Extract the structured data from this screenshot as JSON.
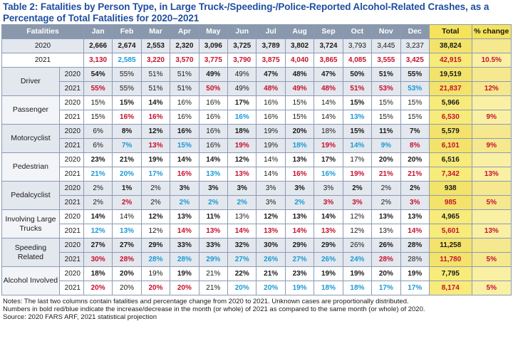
{
  "title": "Table 2: Fatalities by Person Type, in Large Truck-/Speeding-/Police-Reported Alcohol-Related Crashes, as a Percentage of Total Fatalities for 2020–2021",
  "headers": [
    "Fatalities",
    "Jan",
    "Feb",
    "Mar",
    "Apr",
    "May",
    "Jun",
    "Jul",
    "Aug",
    "Sep",
    "Oct",
    "Nov",
    "Dec",
    "Total",
    "% change"
  ],
  "totals": [
    {
      "year": "2020",
      "cells": [
        [
          "2,666",
          "b"
        ],
        [
          "2,674",
          "b"
        ],
        [
          "2,553",
          "b"
        ],
        [
          "2,320",
          "b"
        ],
        [
          "3,096",
          "b"
        ],
        [
          "3,725",
          "b"
        ],
        [
          "3,789",
          "b"
        ],
        [
          "3,802",
          "b"
        ],
        [
          "3,724",
          "b"
        ],
        [
          "3,793",
          ""
        ],
        [
          "3,445",
          ""
        ],
        [
          "3,237",
          ""
        ]
      ],
      "total": "38,824",
      "total_cls": "",
      "change": "",
      "change_cls": ""
    },
    {
      "year": "2021",
      "cells": [
        [
          "3,130",
          "r"
        ],
        [
          "2,585",
          "bl"
        ],
        [
          "3,220",
          "r"
        ],
        [
          "3,570",
          "r"
        ],
        [
          "3,775",
          "r"
        ],
        [
          "3,790",
          "r"
        ],
        [
          "3,875",
          "r"
        ],
        [
          "4,040",
          "r"
        ],
        [
          "3,865",
          "r"
        ],
        [
          "4,085",
          "r"
        ],
        [
          "3,555",
          "r"
        ],
        [
          "3,425",
          "r"
        ]
      ],
      "total": "42,915",
      "total_cls": "r",
      "change": "10.5%",
      "change_cls": "r"
    }
  ],
  "groups": [
    {
      "label": "Driver",
      "rows": [
        {
          "year": "2020",
          "cells": [
            [
              "54%",
              "b"
            ],
            [
              "55%",
              ""
            ],
            [
              "51%",
              ""
            ],
            [
              "51%",
              ""
            ],
            [
              "49%",
              "b"
            ],
            [
              "49%",
              ""
            ],
            [
              "47%",
              "b"
            ],
            [
              "48%",
              "b"
            ],
            [
              "47%",
              "b"
            ],
            [
              "50%",
              "b"
            ],
            [
              "51%",
              "b"
            ],
            [
              "55%",
              "b"
            ]
          ],
          "total": "19,519",
          "total_cls": "",
          "change": "",
          "change_cls": ""
        },
        {
          "year": "2021",
          "cells": [
            [
              "55%",
              "r"
            ],
            [
              "55%",
              ""
            ],
            [
              "51%",
              ""
            ],
            [
              "51%",
              ""
            ],
            [
              "50%",
              "r"
            ],
            [
              "49%",
              ""
            ],
            [
              "48%",
              "r"
            ],
            [
              "49%",
              "r"
            ],
            [
              "48%",
              "r"
            ],
            [
              "51%",
              "r"
            ],
            [
              "53%",
              "r"
            ],
            [
              "53%",
              "bl"
            ]
          ],
          "total": "21,837",
          "total_cls": "r",
          "change": "12%",
          "change_cls": "r"
        }
      ]
    },
    {
      "label": "Passenger",
      "rows": [
        {
          "year": "2020",
          "cells": [
            [
              "15%",
              ""
            ],
            [
              "15%",
              "b"
            ],
            [
              "14%",
              "b"
            ],
            [
              "16%",
              ""
            ],
            [
              "16%",
              ""
            ],
            [
              "17%",
              "b"
            ],
            [
              "16%",
              ""
            ],
            [
              "15%",
              ""
            ],
            [
              "14%",
              ""
            ],
            [
              "15%",
              "b"
            ],
            [
              "15%",
              ""
            ],
            [
              "15%",
              ""
            ]
          ],
          "total": "5,966",
          "total_cls": "",
          "change": "",
          "change_cls": ""
        },
        {
          "year": "2021",
          "cells": [
            [
              "15%",
              ""
            ],
            [
              "16%",
              "r"
            ],
            [
              "16%",
              "r"
            ],
            [
              "16%",
              ""
            ],
            [
              "16%",
              ""
            ],
            [
              "16%",
              "bl"
            ],
            [
              "16%",
              ""
            ],
            [
              "15%",
              ""
            ],
            [
              "14%",
              ""
            ],
            [
              "13%",
              "bl"
            ],
            [
              "15%",
              ""
            ],
            [
              "15%",
              ""
            ]
          ],
          "total": "6,530",
          "total_cls": "r",
          "change": "9%",
          "change_cls": "r"
        }
      ]
    },
    {
      "label": "Motorcyclist",
      "rows": [
        {
          "year": "2020",
          "cells": [
            [
              "6%",
              ""
            ],
            [
              "8%",
              "b"
            ],
            [
              "12%",
              "b"
            ],
            [
              "16%",
              "b"
            ],
            [
              "16%",
              ""
            ],
            [
              "18%",
              "b"
            ],
            [
              "19%",
              ""
            ],
            [
              "20%",
              "b"
            ],
            [
              "18%",
              ""
            ],
            [
              "15%",
              "b"
            ],
            [
              "11%",
              "b"
            ],
            [
              "7%",
              "b"
            ]
          ],
          "total": "5,579",
          "total_cls": "",
          "change": "",
          "change_cls": ""
        },
        {
          "year": "2021",
          "cells": [
            [
              "6%",
              ""
            ],
            [
              "7%",
              "bl"
            ],
            [
              "13%",
              "r"
            ],
            [
              "15%",
              "bl"
            ],
            [
              "16%",
              ""
            ],
            [
              "19%",
              "r"
            ],
            [
              "19%",
              ""
            ],
            [
              "18%",
              "bl"
            ],
            [
              "19%",
              "r"
            ],
            [
              "14%",
              "bl"
            ],
            [
              "9%",
              "bl"
            ],
            [
              "8%",
              "r"
            ]
          ],
          "total": "6,101",
          "total_cls": "r",
          "change": "9%",
          "change_cls": "r"
        }
      ]
    },
    {
      "label": "Pedestrian",
      "rows": [
        {
          "year": "2020",
          "cells": [
            [
              "23%",
              "b"
            ],
            [
              "21%",
              "b"
            ],
            [
              "19%",
              "b"
            ],
            [
              "14%",
              "b"
            ],
            [
              "14%",
              "b"
            ],
            [
              "12%",
              "b"
            ],
            [
              "14%",
              ""
            ],
            [
              "13%",
              "b"
            ],
            [
              "17%",
              "b"
            ],
            [
              "17%",
              ""
            ],
            [
              "20%",
              "b"
            ],
            [
              "20%",
              "b"
            ]
          ],
          "total": "6,516",
          "total_cls": "",
          "change": "",
          "change_cls": ""
        },
        {
          "year": "2021",
          "cells": [
            [
              "21%",
              "bl"
            ],
            [
              "20%",
              "bl"
            ],
            [
              "17%",
              "bl"
            ],
            [
              "16%",
              "r"
            ],
            [
              "13%",
              "bl"
            ],
            [
              "13%",
              "r"
            ],
            [
              "14%",
              ""
            ],
            [
              "16%",
              "r"
            ],
            [
              "16%",
              "bl"
            ],
            [
              "19%",
              "r"
            ],
            [
              "21%",
              "r"
            ],
            [
              "21%",
              "r"
            ]
          ],
          "total": "7,342",
          "total_cls": "r",
          "change": "13%",
          "change_cls": "r"
        }
      ]
    },
    {
      "label": "Pedalcyclist",
      "rows": [
        {
          "year": "2020",
          "cells": [
            [
              "2%",
              ""
            ],
            [
              "1%",
              "b"
            ],
            [
              "2%",
              ""
            ],
            [
              "3%",
              "b"
            ],
            [
              "3%",
              "b"
            ],
            [
              "3%",
              "b"
            ],
            [
              "3%",
              ""
            ],
            [
              "3%",
              "b"
            ],
            [
              "3%",
              ""
            ],
            [
              "2%",
              "b"
            ],
            [
              "2%",
              ""
            ],
            [
              "2%",
              "b"
            ]
          ],
          "total": "938",
          "total_cls": "",
          "change": "",
          "change_cls": ""
        },
        {
          "year": "2021",
          "cells": [
            [
              "2%",
              ""
            ],
            [
              "2%",
              "r"
            ],
            [
              "2%",
              ""
            ],
            [
              "2%",
              "bl"
            ],
            [
              "2%",
              "bl"
            ],
            [
              "2%",
              "bl"
            ],
            [
              "3%",
              ""
            ],
            [
              "2%",
              "bl"
            ],
            [
              "3%",
              "r"
            ],
            [
              "3%",
              "r"
            ],
            [
              "2%",
              ""
            ],
            [
              "3%",
              "r"
            ]
          ],
          "total": "985",
          "total_cls": "r",
          "change": "5%",
          "change_cls": "r"
        }
      ]
    },
    {
      "label": "Involving Large Trucks",
      "rows": [
        {
          "year": "2020",
          "cells": [
            [
              "14%",
              "b"
            ],
            [
              "14%",
              ""
            ],
            [
              "12%",
              "b"
            ],
            [
              "13%",
              "b"
            ],
            [
              "11%",
              "b"
            ],
            [
              "13%",
              ""
            ],
            [
              "12%",
              "b"
            ],
            [
              "13%",
              "b"
            ],
            [
              "14%",
              "b"
            ],
            [
              "12%",
              ""
            ],
            [
              "13%",
              "b"
            ],
            [
              "13%",
              "b"
            ]
          ],
          "total": "4,965",
          "total_cls": "",
          "change": "",
          "change_cls": ""
        },
        {
          "year": "2021",
          "cells": [
            [
              "12%",
              "bl"
            ],
            [
              "13%",
              "bl"
            ],
            [
              "12%",
              ""
            ],
            [
              "14%",
              "r"
            ],
            [
              "13%",
              "r"
            ],
            [
              "14%",
              "r"
            ],
            [
              "13%",
              "r"
            ],
            [
              "14%",
              "r"
            ],
            [
              "13%",
              "r"
            ],
            [
              "12%",
              ""
            ],
            [
              "13%",
              ""
            ],
            [
              "14%",
              "r"
            ]
          ],
          "total": "5,601",
          "total_cls": "r",
          "change": "13%",
          "change_cls": "r"
        }
      ]
    },
    {
      "label": "Speeding Related",
      "rows": [
        {
          "year": "2020",
          "cells": [
            [
              "27%",
              "b"
            ],
            [
              "27%",
              "b"
            ],
            [
              "29%",
              "b"
            ],
            [
              "33%",
              "b"
            ],
            [
              "33%",
              "b"
            ],
            [
              "32%",
              "b"
            ],
            [
              "30%",
              "b"
            ],
            [
              "29%",
              "b"
            ],
            [
              "29%",
              "b"
            ],
            [
              "26%",
              ""
            ],
            [
              "26%",
              "b"
            ],
            [
              "28%",
              "b"
            ]
          ],
          "total": "11,258",
          "total_cls": "",
          "change": "",
          "change_cls": ""
        },
        {
          "year": "2021",
          "cells": [
            [
              "30%",
              "r"
            ],
            [
              "28%",
              "r"
            ],
            [
              "28%",
              "bl"
            ],
            [
              "28%",
              "bl"
            ],
            [
              "29%",
              "bl"
            ],
            [
              "27%",
              "bl"
            ],
            [
              "26%",
              "bl"
            ],
            [
              "27%",
              "bl"
            ],
            [
              "26%",
              "bl"
            ],
            [
              "24%",
              "bl"
            ],
            [
              "28%",
              "r"
            ],
            [
              "28%",
              ""
            ]
          ],
          "total": "11,780",
          "total_cls": "r",
          "change": "5%",
          "change_cls": "r"
        }
      ]
    },
    {
      "label": "Alcohol Involved",
      "rows": [
        {
          "year": "2020",
          "cells": [
            [
              "18%",
              "b"
            ],
            [
              "20%",
              "b"
            ],
            [
              "19%",
              ""
            ],
            [
              "19%",
              "b"
            ],
            [
              "21%",
              ""
            ],
            [
              "22%",
              "b"
            ],
            [
              "21%",
              "b"
            ],
            [
              "23%",
              "b"
            ],
            [
              "19%",
              "b"
            ],
            [
              "19%",
              "b"
            ],
            [
              "20%",
              "b"
            ],
            [
              "19%",
              "b"
            ]
          ],
          "total": "7,795",
          "total_cls": "",
          "change": "",
          "change_cls": ""
        },
        {
          "year": "2021",
          "cells": [
            [
              "20%",
              "r"
            ],
            [
              "20%",
              ""
            ],
            [
              "20%",
              "r"
            ],
            [
              "20%",
              "r"
            ],
            [
              "21%",
              ""
            ],
            [
              "20%",
              "bl"
            ],
            [
              "20%",
              "bl"
            ],
            [
              "19%",
              "bl"
            ],
            [
              "18%",
              "bl"
            ],
            [
              "18%",
              "bl"
            ],
            [
              "17%",
              "bl"
            ],
            [
              "17%",
              "bl"
            ]
          ],
          "total": "8,174",
          "total_cls": "r",
          "change": "5%",
          "change_cls": "r"
        }
      ]
    }
  ],
  "notes": [
    "Notes: The last two columns contain fatalities and percentage change from 2020 to 2021. Unknown cases are proportionally distributed.",
    "Numbers in bold red/blue indicate the increase/decrease in the month (or whole) of 2021 as compared to the same month (or whole) of 2020.",
    "Source: 2020 FARS ARF, 2021 statistical projection"
  ]
}
